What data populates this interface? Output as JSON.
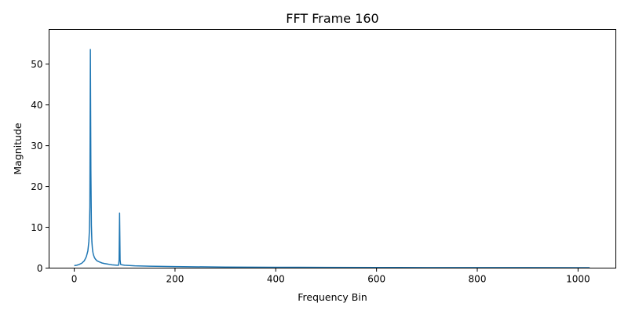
{
  "chart_data": {
    "type": "line",
    "title": "FFT Frame 160",
    "xlabel": "Frequency Bin",
    "ylabel": "Magnitude",
    "xlim": [
      -50,
      1075
    ],
    "ylim": [
      0,
      58.5
    ],
    "xticks": [
      0,
      200,
      400,
      600,
      800,
      1000
    ],
    "yticks": [
      0,
      10,
      20,
      30,
      40,
      50
    ],
    "grid": false,
    "legend": "none",
    "series": [
      {
        "color": "#1f77b4",
        "x": [
          0,
          5,
          10,
          15,
          20,
          24,
          27,
          29,
          30,
          31,
          32,
          33,
          34,
          35,
          36,
          37,
          38,
          40,
          42,
          45,
          50,
          55,
          60,
          65,
          70,
          75,
          80,
          85,
          88,
          89,
          90,
          91,
          92,
          95,
          100,
          110,
          120,
          150,
          200,
          300,
          400,
          500,
          600,
          700,
          800,
          900,
          1000,
          1023
        ],
        "y": [
          0.6,
          0.7,
          0.9,
          1.2,
          1.8,
          2.8,
          4.2,
          6.5,
          9.0,
          15.0,
          53.6,
          24.0,
          10.5,
          6.5,
          4.8,
          3.9,
          3.3,
          2.6,
          2.2,
          1.8,
          1.5,
          1.25,
          1.1,
          1.0,
          0.9,
          0.8,
          0.75,
          0.7,
          0.7,
          2.0,
          13.5,
          2.0,
          0.9,
          0.8,
          0.7,
          0.62,
          0.55,
          0.45,
          0.35,
          0.25,
          0.2,
          0.17,
          0.15,
          0.13,
          0.12,
          0.11,
          0.1,
          0.1
        ]
      }
    ]
  }
}
